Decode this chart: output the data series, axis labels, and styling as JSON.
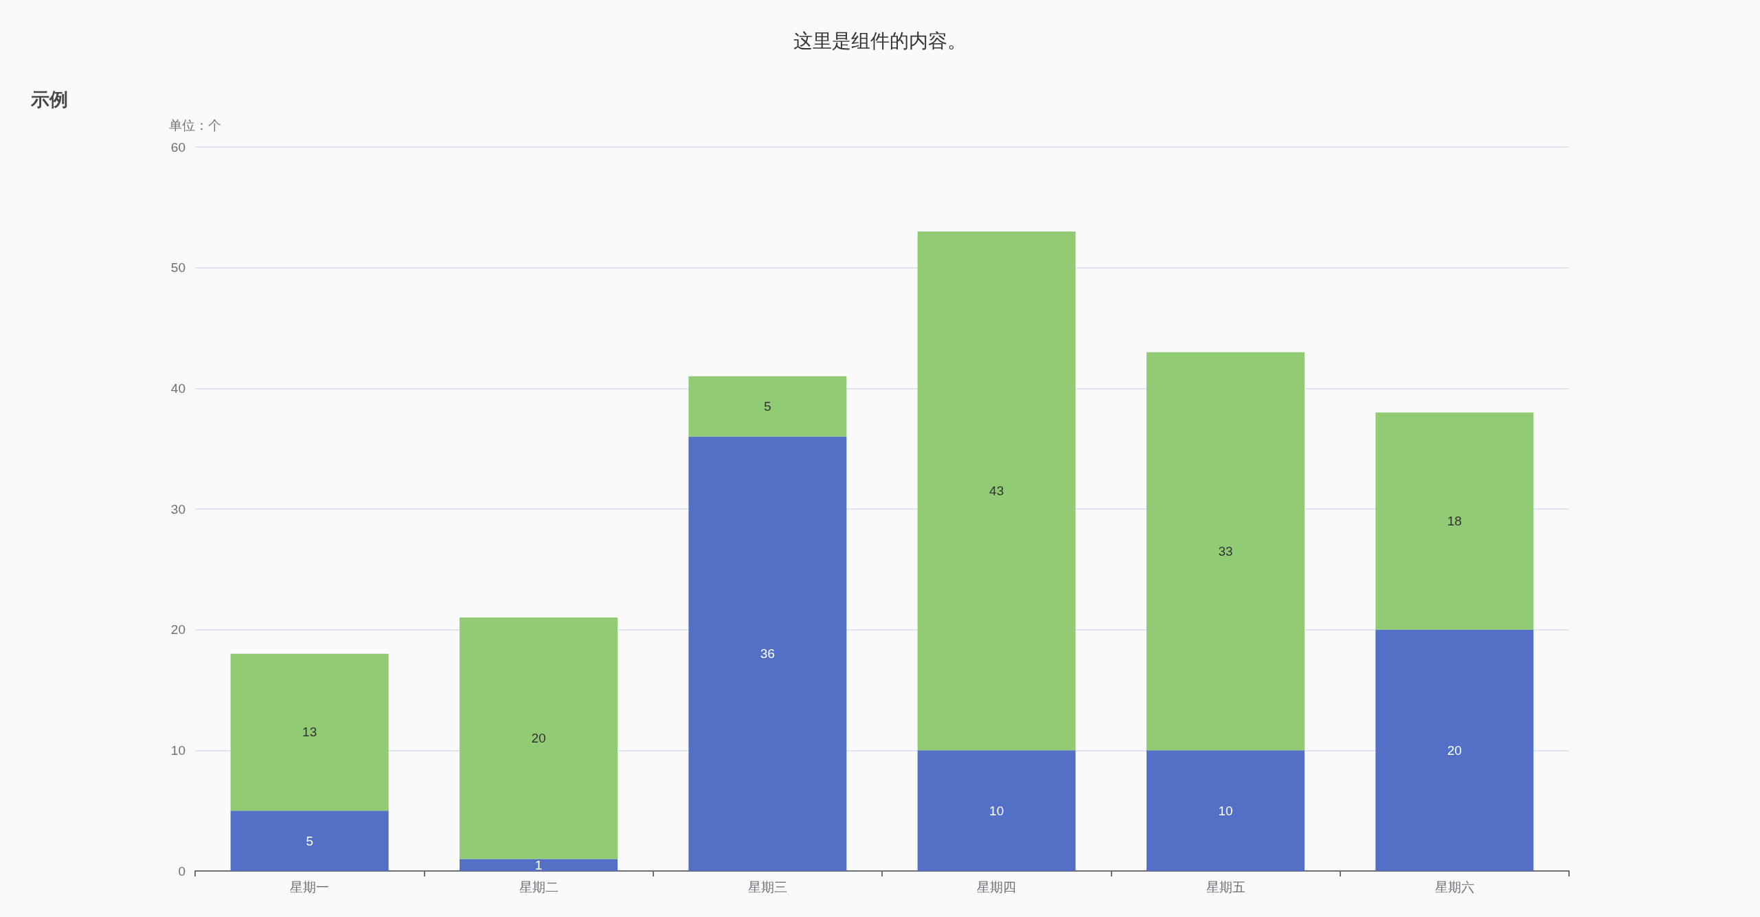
{
  "chart_data": {
    "type": "bar",
    "title": "这里是组件的内容。",
    "subtitle": "示例",
    "ylabel": "单位：个",
    "categories": [
      "星期一",
      "星期二",
      "星期三",
      "星期四",
      "星期五",
      "星期六"
    ],
    "series": [
      {
        "color": "#5470c6",
        "values": [
          5,
          1,
          36,
          10,
          10,
          20
        ]
      },
      {
        "color": "#91cc75",
        "values": [
          13,
          20,
          5,
          43,
          33,
          18
        ]
      }
    ],
    "stacked": true,
    "data_labels": true,
    "ylim": [
      0,
      60
    ],
    "yticks": [
      0,
      10,
      20,
      30,
      40,
      50,
      60
    ],
    "grid": "y"
  }
}
